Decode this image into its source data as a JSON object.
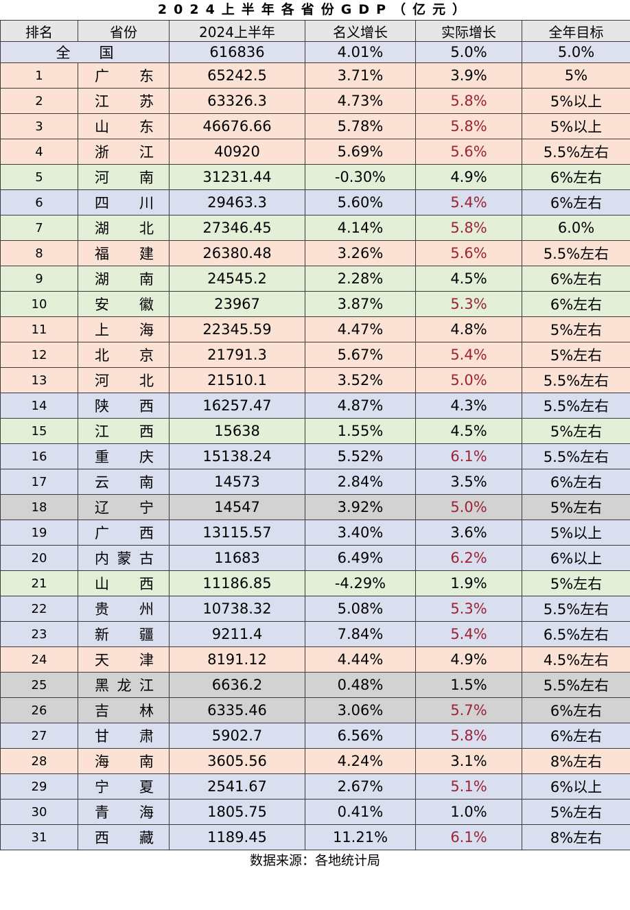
{
  "title": "2024上半年各省份GDP（亿元）",
  "headers": [
    "排名",
    "省份",
    "2024上半年",
    "名义增长",
    "实际增长",
    "全年目标"
  ],
  "national": {
    "label": "全　　国",
    "gdp": "616836",
    "nominal": "4.01%",
    "real": "5.0%",
    "target": "5.0%"
  },
  "rows": [
    {
      "rank": "1",
      "province": [
        "广",
        "东"
      ],
      "gdp": "65242.5",
      "nominal": "3.71%",
      "real": "3.9%",
      "target": "5%",
      "color": "peach",
      "real_red": false
    },
    {
      "rank": "2",
      "province": [
        "江",
        "苏"
      ],
      "gdp": "63326.3",
      "nominal": "4.73%",
      "real": "5.8%",
      "target": "5%以上",
      "color": "peach",
      "real_red": true
    },
    {
      "rank": "3",
      "province": [
        "山",
        "东"
      ],
      "gdp": "46676.66",
      "nominal": "5.78%",
      "real": "5.8%",
      "target": "5%以上",
      "color": "peach",
      "real_red": true
    },
    {
      "rank": "4",
      "province": [
        "浙",
        "江"
      ],
      "gdp": "40920",
      "nominal": "5.69%",
      "real": "5.6%",
      "target": "5.5%左右",
      "color": "peach",
      "real_red": true
    },
    {
      "rank": "5",
      "province": [
        "河",
        "南"
      ],
      "gdp": "31231.44",
      "nominal": "-0.30%",
      "real": "4.9%",
      "target": "6%左右",
      "color": "green",
      "real_red": false
    },
    {
      "rank": "6",
      "province": [
        "四",
        "川"
      ],
      "gdp": "29463.3",
      "nominal": "5.60%",
      "real": "5.4%",
      "target": "6%左右",
      "color": "blue",
      "real_red": true
    },
    {
      "rank": "7",
      "province": [
        "湖",
        "北"
      ],
      "gdp": "27346.45",
      "nominal": "4.14%",
      "real": "5.8%",
      "target": "6.0%",
      "color": "green",
      "real_red": true
    },
    {
      "rank": "8",
      "province": [
        "福",
        "建"
      ],
      "gdp": "26380.48",
      "nominal": "3.26%",
      "real": "5.6%",
      "target": "5.5%左右",
      "color": "peach",
      "real_red": true
    },
    {
      "rank": "9",
      "province": [
        "湖",
        "南"
      ],
      "gdp": "24545.2",
      "nominal": "2.28%",
      "real": "4.5%",
      "target": "6%左右",
      "color": "green",
      "real_red": false
    },
    {
      "rank": "10",
      "province": [
        "安",
        "徽"
      ],
      "gdp": "23967",
      "nominal": "3.87%",
      "real": "5.3%",
      "target": "6%左右",
      "color": "green",
      "real_red": true
    },
    {
      "rank": "11",
      "province": [
        "上",
        "海"
      ],
      "gdp": "22345.59",
      "nominal": "4.47%",
      "real": "4.8%",
      "target": "5%左右",
      "color": "peach",
      "real_red": false
    },
    {
      "rank": "12",
      "province": [
        "北",
        "京"
      ],
      "gdp": "21791.3",
      "nominal": "5.67%",
      "real": "5.4%",
      "target": "5%左右",
      "color": "peach",
      "real_red": true
    },
    {
      "rank": "13",
      "province": [
        "河",
        "北"
      ],
      "gdp": "21510.1",
      "nominal": "3.52%",
      "real": "5.0%",
      "target": "5.5%左右",
      "color": "peach",
      "real_red": true
    },
    {
      "rank": "14",
      "province": [
        "陕",
        "西"
      ],
      "gdp": "16257.47",
      "nominal": "4.87%",
      "real": "4.3%",
      "target": "5.5%左右",
      "color": "blue",
      "real_red": false
    },
    {
      "rank": "15",
      "province": [
        "江",
        "西"
      ],
      "gdp": "15638",
      "nominal": "1.55%",
      "real": "4.5%",
      "target": "5%左右",
      "color": "green",
      "real_red": false
    },
    {
      "rank": "16",
      "province": [
        "重",
        "庆"
      ],
      "gdp": "15138.24",
      "nominal": "5.52%",
      "real": "6.1%",
      "target": "5.5%左右",
      "color": "blue",
      "real_red": true
    },
    {
      "rank": "17",
      "province": [
        "云",
        "南"
      ],
      "gdp": "14573",
      "nominal": "2.84%",
      "real": "3.5%",
      "target": "6%左右",
      "color": "blue",
      "real_red": false
    },
    {
      "rank": "18",
      "province": [
        "辽",
        "宁"
      ],
      "gdp": "14547",
      "nominal": "3.92%",
      "real": "5.0%",
      "target": "5%左右",
      "color": "gray",
      "real_red": true
    },
    {
      "rank": "19",
      "province": [
        "广",
        "西"
      ],
      "gdp": "13115.57",
      "nominal": "3.40%",
      "real": "3.6%",
      "target": "5%以上",
      "color": "blue",
      "real_red": false
    },
    {
      "rank": "20",
      "province": [
        "内",
        "蒙",
        "古"
      ],
      "gdp": "11683",
      "nominal": "6.49%",
      "real": "6.2%",
      "target": "6%以上",
      "color": "blue",
      "real_red": true
    },
    {
      "rank": "21",
      "province": [
        "山",
        "西"
      ],
      "gdp": "11186.85",
      "nominal": "-4.29%",
      "real": "1.9%",
      "target": "5%左右",
      "color": "green",
      "real_red": false
    },
    {
      "rank": "22",
      "province": [
        "贵",
        "州"
      ],
      "gdp": "10738.32",
      "nominal": "5.08%",
      "real": "5.3%",
      "target": "5.5%左右",
      "color": "blue",
      "real_red": true
    },
    {
      "rank": "23",
      "province": [
        "新",
        "疆"
      ],
      "gdp": "9211.4",
      "nominal": "7.84%",
      "real": "5.4%",
      "target": "6.5%左右",
      "color": "blue",
      "real_red": true
    },
    {
      "rank": "24",
      "province": [
        "天",
        "津"
      ],
      "gdp": "8191.12",
      "nominal": "4.44%",
      "real": "4.9%",
      "target": "4.5%左右",
      "color": "peach",
      "real_red": false
    },
    {
      "rank": "25",
      "province": [
        "黑",
        "龙",
        "江"
      ],
      "gdp": "6636.2",
      "nominal": "0.48%",
      "real": "1.5%",
      "target": "5.5%左右",
      "color": "gray",
      "real_red": false
    },
    {
      "rank": "26",
      "province": [
        "吉",
        "林"
      ],
      "gdp": "6335.46",
      "nominal": "3.06%",
      "real": "5.7%",
      "target": "6%左右",
      "color": "gray",
      "real_red": true
    },
    {
      "rank": "27",
      "province": [
        "甘",
        "肃"
      ],
      "gdp": "5902.7",
      "nominal": "6.56%",
      "real": "5.8%",
      "target": "6%左右",
      "color": "blue",
      "real_red": true
    },
    {
      "rank": "28",
      "province": [
        "海",
        "南"
      ],
      "gdp": "3605.56",
      "nominal": "4.24%",
      "real": "3.1%",
      "target": "8%左右",
      "color": "peach",
      "real_red": false
    },
    {
      "rank": "29",
      "province": [
        "宁",
        "夏"
      ],
      "gdp": "2541.67",
      "nominal": "2.67%",
      "real": "5.1%",
      "target": "6%以上",
      "color": "blue",
      "real_red": true
    },
    {
      "rank": "30",
      "province": [
        "青",
        "海"
      ],
      "gdp": "1805.75",
      "nominal": "0.41%",
      "real": "1.0%",
      "target": "5%左右",
      "color": "blue",
      "real_red": false
    },
    {
      "rank": "31",
      "province": [
        "西",
        "藏"
      ],
      "gdp": "1189.45",
      "nominal": "11.21%",
      "real": "6.1%",
      "target": "8%左右",
      "color": "blue",
      "real_red": true
    }
  ],
  "footer": "数据来源：各地统计局",
  "colors": {
    "peach": "#fbe2d4",
    "green": "#e4efd8",
    "blue": "#dadff0",
    "gray": "#d2d2d2",
    "red_text": "#9b2335"
  }
}
